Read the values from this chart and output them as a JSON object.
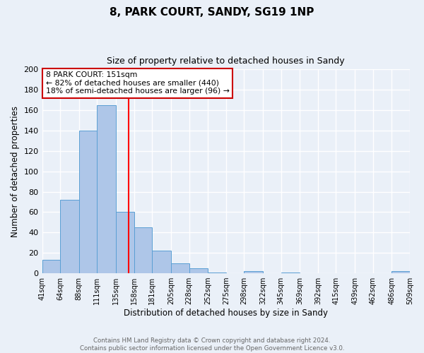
{
  "title": "8, PARK COURT, SANDY, SG19 1NP",
  "subtitle": "Size of property relative to detached houses in Sandy",
  "xlabel": "Distribution of detached houses by size in Sandy",
  "ylabel": "Number of detached properties",
  "bar_color": "#aec6e8",
  "bar_edge_color": "#5a9fd4",
  "bg_color": "#eaf0f8",
  "grid_color": "#ffffff",
  "vline_x": 151,
  "vline_color": "red",
  "bins": [
    41,
    64,
    88,
    111,
    135,
    158,
    181,
    205,
    228,
    252,
    275,
    298,
    322,
    345,
    369,
    392,
    415,
    439,
    462,
    486,
    509
  ],
  "counts": [
    13,
    72,
    140,
    165,
    60,
    45,
    22,
    10,
    5,
    1,
    0,
    2,
    0,
    1,
    0,
    0,
    0,
    0,
    0,
    2
  ],
  "ylim": [
    0,
    200
  ],
  "yticks": [
    0,
    20,
    40,
    60,
    80,
    100,
    120,
    140,
    160,
    180,
    200
  ],
  "annotation_title": "8 PARK COURT: 151sqm",
  "annotation_line1": "← 82% of detached houses are smaller (440)",
  "annotation_line2": "18% of semi-detached houses are larger (96) →",
  "annotation_box_color": "#ffffff",
  "annotation_box_edge": "#cc0000",
  "footer1": "Contains HM Land Registry data © Crown copyright and database right 2024.",
  "footer2": "Contains public sector information licensed under the Open Government Licence v3.0.",
  "tick_labels": [
    "41sqm",
    "64sqm",
    "88sqm",
    "111sqm",
    "135sqm",
    "158sqm",
    "181sqm",
    "205sqm",
    "228sqm",
    "252sqm",
    "275sqm",
    "298sqm",
    "322sqm",
    "345sqm",
    "369sqm",
    "392sqm",
    "415sqm",
    "439sqm",
    "462sqm",
    "486sqm",
    "509sqm"
  ]
}
